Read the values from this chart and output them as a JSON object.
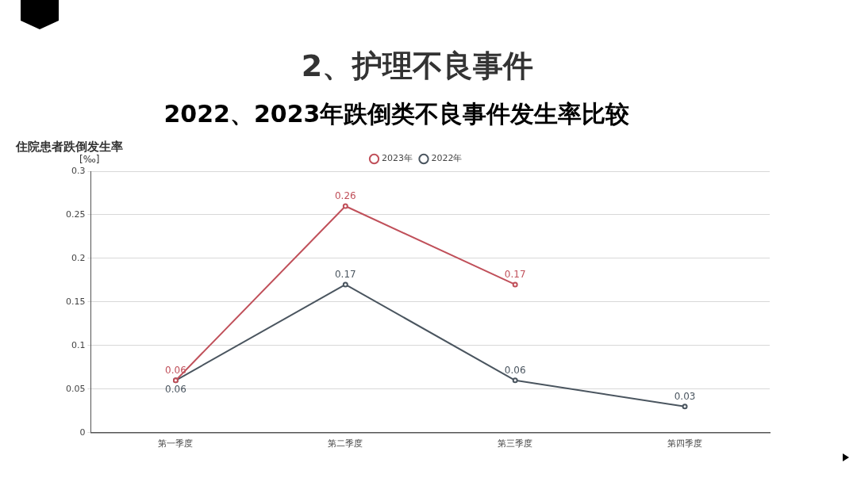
{
  "chart_data": {
    "type": "line",
    "title": "2、护理不良事件",
    "subtitle": "2022、2023年跌倒类不良事件发生率比较",
    "ylabel": "住院患者跌倒发生率",
    "annotations": [
      "[‰]"
    ],
    "categories": [
      "第一季度",
      "第二季度",
      "第三季度",
      "第四季度"
    ],
    "series": [
      {
        "name": "2023年",
        "color": "#c0505a",
        "values": [
          0.06,
          0.26,
          0.17,
          null
        ]
      },
      {
        "name": "2022年",
        "color": "#4a555f",
        "values": [
          0.06,
          0.17,
          0.06,
          0.03
        ]
      }
    ],
    "ylim": [
      0,
      0.3
    ],
    "yticks": [
      0,
      0.05,
      0.1,
      0.15,
      0.2,
      0.25,
      0.3
    ],
    "grid": "y",
    "legend": "top",
    "marker": "circle",
    "line_style": "solid",
    "data_labels": true
  }
}
